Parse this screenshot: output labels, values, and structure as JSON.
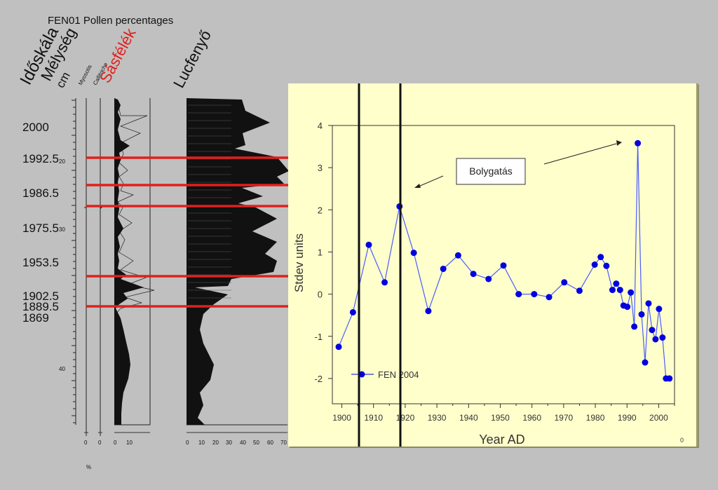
{
  "figure": {
    "title": "FEN01 Pollen percentages",
    "headers": {
      "timescale": "Időskála",
      "depth": "Mélység",
      "depth_unit": "cm",
      "myosotis": "Myosotis",
      "callitriche": "Callitriche",
      "sedges": "Sásfélék",
      "spruce": "Lucfenyő"
    },
    "ages": [
      "2000",
      "1992.5",
      "1986.5",
      "1975.5",
      "1953.5",
      "1902.5",
      "1889.5",
      "1869"
    ],
    "depth_ticks": [
      "20",
      "30",
      "40"
    ],
    "axis_labels": {
      "small1": "0",
      "small2": "0",
      "sedges": [
        "0",
        "10"
      ],
      "spruce": [
        "0",
        "10",
        "20",
        "30",
        "40",
        "50",
        "60",
        "70"
      ],
      "percent": "%"
    },
    "colors": {
      "marker_lines": "#e0201c",
      "panel": "#ffffcc",
      "series": "#0000e0",
      "background": "#c0c0c0"
    }
  },
  "chart_data": {
    "type": "line",
    "xlabel": "Year AD",
    "ylabel": "Stdev units",
    "xlim": [
      1897,
      2005
    ],
    "ylim": [
      -2.6,
      4
    ],
    "xticks": [
      "1900",
      "1910",
      "1920",
      "1930",
      "1940",
      "1950",
      "1960",
      "1970",
      "1980",
      "1990",
      "2000"
    ],
    "yticks": [
      "4",
      "3",
      "2",
      "1",
      "0",
      "-1",
      "-2"
    ],
    "annotation": "Bolygatás",
    "legend": "FEN 2004",
    "corner_label": "0",
    "series": [
      {
        "name": "FEN 2004",
        "x": [
          1899,
          1903.5,
          1908.5,
          1913.5,
          1918.2,
          1922.7,
          1927.3,
          1932,
          1936.7,
          1941.5,
          1946.3,
          1951,
          1955.8,
          1960.7,
          1965.4,
          1970.2,
          1975,
          1979.8,
          1981.7,
          1983.5,
          1985.4,
          1986.6,
          1987.8,
          1988.9,
          1990.1,
          1991.2,
          1992.3,
          1993.4,
          1994.6,
          1995.7,
          1996.8,
          1997.9,
          1999,
          2000.1,
          2001.2,
          2002.3,
          2003.4
        ],
        "y": [
          -1.25,
          -0.43,
          1.17,
          0.28,
          2.08,
          0.98,
          -0.4,
          0.6,
          0.92,
          0.48,
          0.36,
          0.68,
          0.0,
          0.0,
          -0.07,
          0.28,
          0.08,
          0.7,
          0.88,
          0.67,
          0.1,
          0.25,
          0.1,
          -0.27,
          -0.3,
          0.04,
          -0.77,
          3.58,
          -0.48,
          -1.62,
          -0.22,
          -0.85,
          -1.07,
          -0.35,
          -1.03,
          -2.0,
          -2.0
        ]
      }
    ]
  }
}
